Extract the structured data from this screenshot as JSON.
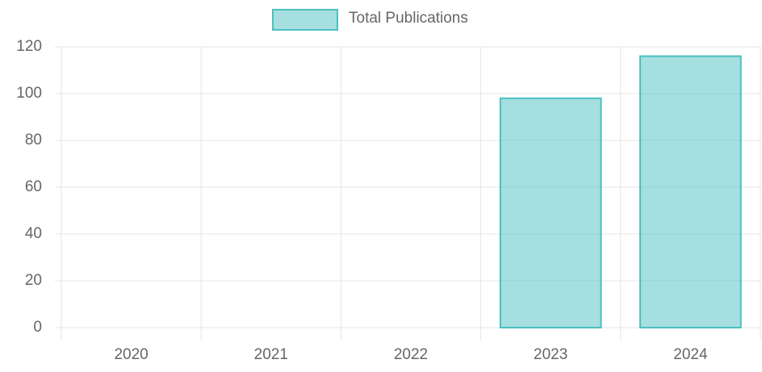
{
  "chart_data": {
    "type": "bar",
    "categories": [
      "2020",
      "2021",
      "2022",
      "2023",
      "2024"
    ],
    "series": [
      {
        "name": "Total Publications",
        "color": "#4bc0c0",
        "values": [
          0,
          0,
          0,
          98,
          116
        ]
      }
    ],
    "ylim": [
      0,
      120
    ],
    "yticks": [
      0,
      20,
      40,
      60,
      80,
      100,
      120
    ],
    "grid": true,
    "legend": "top"
  }
}
